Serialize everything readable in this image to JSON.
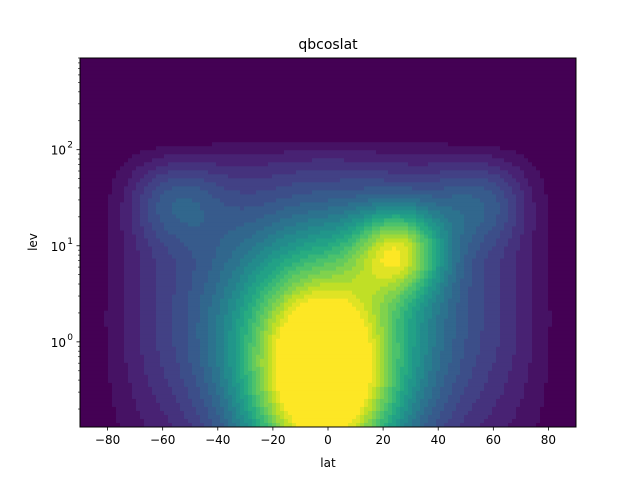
{
  "chart_data": {
    "type": "heatmap",
    "plot_kind": "filled contour",
    "colormap": "viridis",
    "title": "qbcoslat",
    "xlabel": "lat",
    "ylabel": "lev",
    "xlim": [
      -90,
      90
    ],
    "ylim": [
      0.13,
      900
    ],
    "y_scale": "log",
    "y_direction": "increasing upward",
    "grid": false,
    "legend": "none",
    "x_ticks": [
      {
        "value": -80,
        "label": "−80"
      },
      {
        "value": -60,
        "label": "−60"
      },
      {
        "value": -40,
        "label": "−40"
      },
      {
        "value": -20,
        "label": "−20"
      },
      {
        "value": 0,
        "label": "0"
      },
      {
        "value": 20,
        "label": "20"
      },
      {
        "value": 40,
        "label": "40"
      },
      {
        "value": 60,
        "label": "60"
      },
      {
        "value": 80,
        "label": "80"
      }
    ],
    "y_ticks": [
      {
        "value": 1,
        "base": "10",
        "exp": "0"
      },
      {
        "value": 10,
        "base": "10",
        "exp": "1"
      },
      {
        "value": 100,
        "base": "10",
        "exp": "2"
      }
    ],
    "field_features": [
      {
        "feature": "maximum",
        "lat": -2,
        "lev": 0.6,
        "level": 1.0
      },
      {
        "feature": "secondary lobe",
        "lat": 25,
        "lev": 10,
        "level": 0.72
      },
      {
        "feature": "near-zero above",
        "lev_above": 100,
        "level": 0.0
      },
      {
        "feature": "near-zero at poles",
        "lat_abs_above": 85,
        "level": 0.0
      }
    ],
    "color_levels": 21
  }
}
